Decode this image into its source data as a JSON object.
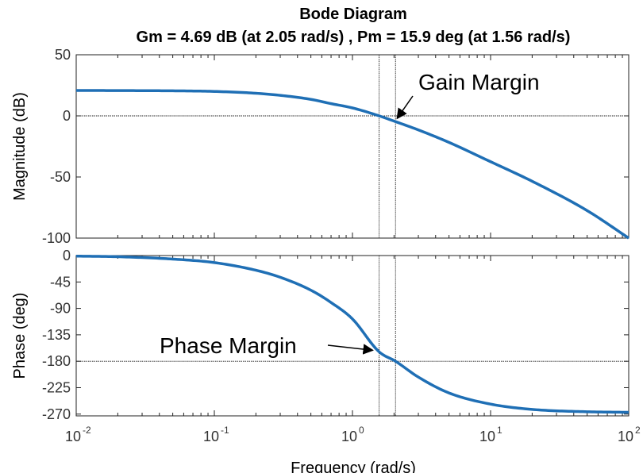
{
  "chart_data": {
    "type": "line",
    "title": "Bode Diagram",
    "subtitle": "Gm = 4.69 dB (at 2.05 rad/s) ,  Pm = 15.9 deg (at 1.56 rad/s)",
    "xlabel": "Frequency  (rad/s)",
    "x_scale": "log",
    "xlim": [
      0.01,
      100
    ],
    "x_ticks": [
      {
        "base": "10",
        "exp": "-2",
        "value": 0.01
      },
      {
        "base": "10",
        "exp": "-1",
        "value": 0.1
      },
      {
        "base": "10",
        "exp": "0",
        "value": 1
      },
      {
        "base": "10",
        "exp": "1",
        "value": 10
      },
      {
        "base": "10",
        "exp": "2",
        "value": 100
      }
    ],
    "gain_crossover_freq": 1.56,
    "phase_crossover_freq": 2.05,
    "grid": false,
    "line_color": "#1f6fb5",
    "panels": [
      {
        "name": "magnitude",
        "ylabel": "Magnitude (dB)",
        "ylim": [
          -100,
          50
        ],
        "y_ticks": [
          "50",
          "0",
          "-50",
          "-100"
        ],
        "reference_line": 0,
        "x": [
          0.01,
          0.02,
          0.05,
          0.1,
          0.2,
          0.3,
          0.5,
          0.7,
          1,
          1.56,
          2.05,
          3,
          5,
          10,
          20,
          50,
          100
        ],
        "y": [
          20.8,
          20.7,
          20.5,
          20,
          18.5,
          16.8,
          13.5,
          10,
          6.5,
          0,
          -4.7,
          -11.5,
          -21.7,
          -37.5,
          -53.5,
          -77.5,
          -100
        ]
      },
      {
        "name": "phase",
        "ylabel": "Phase (deg)",
        "ylim": [
          -273,
          0
        ],
        "y_ticks": [
          "0",
          "-45",
          "-90",
          "-135",
          "-180",
          "-225",
          "-270"
        ],
        "reference_line": -180,
        "x": [
          0.01,
          0.02,
          0.05,
          0.1,
          0.2,
          0.3,
          0.5,
          0.7,
          1,
          1.56,
          2.05,
          3,
          5,
          10,
          20,
          50,
          100
        ],
        "y": [
          -1,
          -2,
          -6,
          -12,
          -25,
          -37,
          -59,
          -80,
          -108,
          -164,
          -180,
          -207,
          -234,
          -253,
          -262,
          -266,
          -267
        ]
      }
    ],
    "annotations": [
      {
        "text": "Gain Margin",
        "panel": "magnitude",
        "x": 2.05
      },
      {
        "text": "Phase Margin",
        "panel": "phase",
        "x": 1.56
      }
    ]
  }
}
